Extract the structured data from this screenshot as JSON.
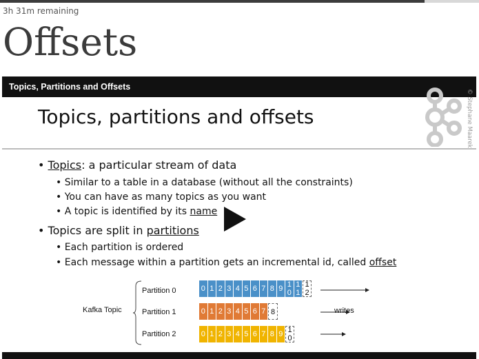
{
  "header": {
    "remaining": "3h 31m remaining",
    "title": "Offsets",
    "progress": 0.886
  },
  "player": {
    "title": "Topics, Partitions and Offsets"
  },
  "slide": {
    "heading": "Topics, partitions and offsets",
    "copyright": "© Stephane Maarek",
    "bullets": [
      {
        "keyword": "Topics",
        "rest": ": a particular stream of data"
      },
      {
        "text": "Similar to a table in a database (without all the constraints)"
      },
      {
        "text": "You can have as many topics as you want"
      },
      {
        "pre": "A topic is identified by its ",
        "keyword": "name"
      },
      {
        "pre": "Topics are split in ",
        "keyword": "partitions"
      },
      {
        "text": "Each partition is ordered"
      },
      {
        "pre": "Each message within a partition gets an incremental id, called ",
        "keyword": "offset"
      }
    ],
    "diagram": {
      "topic_label": "Kafka Topic",
      "writes_label": "writes",
      "partitions": [
        {
          "label": "Partition 0",
          "color": "#4a90c8",
          "offsets": [
            "0",
            "1",
            "2",
            "3",
            "4",
            "5",
            "6",
            "7",
            "8",
            "9"
          ],
          "extra_top": [
            "1",
            "1"
          ],
          "extra_bottom": [
            "0",
            "1"
          ],
          "next_top": "1",
          "next_bottom": "2"
        },
        {
          "label": "Partition 1",
          "color": "#e07a35",
          "offsets": [
            "0",
            "1",
            "2",
            "3",
            "4",
            "5",
            "6",
            "7"
          ],
          "next": "8"
        },
        {
          "label": "Partition 2",
          "color": "#f0b400",
          "offsets": [
            "0",
            "1",
            "2",
            "3",
            "4",
            "5",
            "6",
            "7",
            "8",
            "9"
          ],
          "next_top": "1",
          "next_bottom": "0"
        }
      ]
    }
  },
  "colors": {
    "player_bar": "#111111",
    "partition0": "#4a90c8",
    "partition1": "#e07a35",
    "partition2": "#f0b400"
  }
}
